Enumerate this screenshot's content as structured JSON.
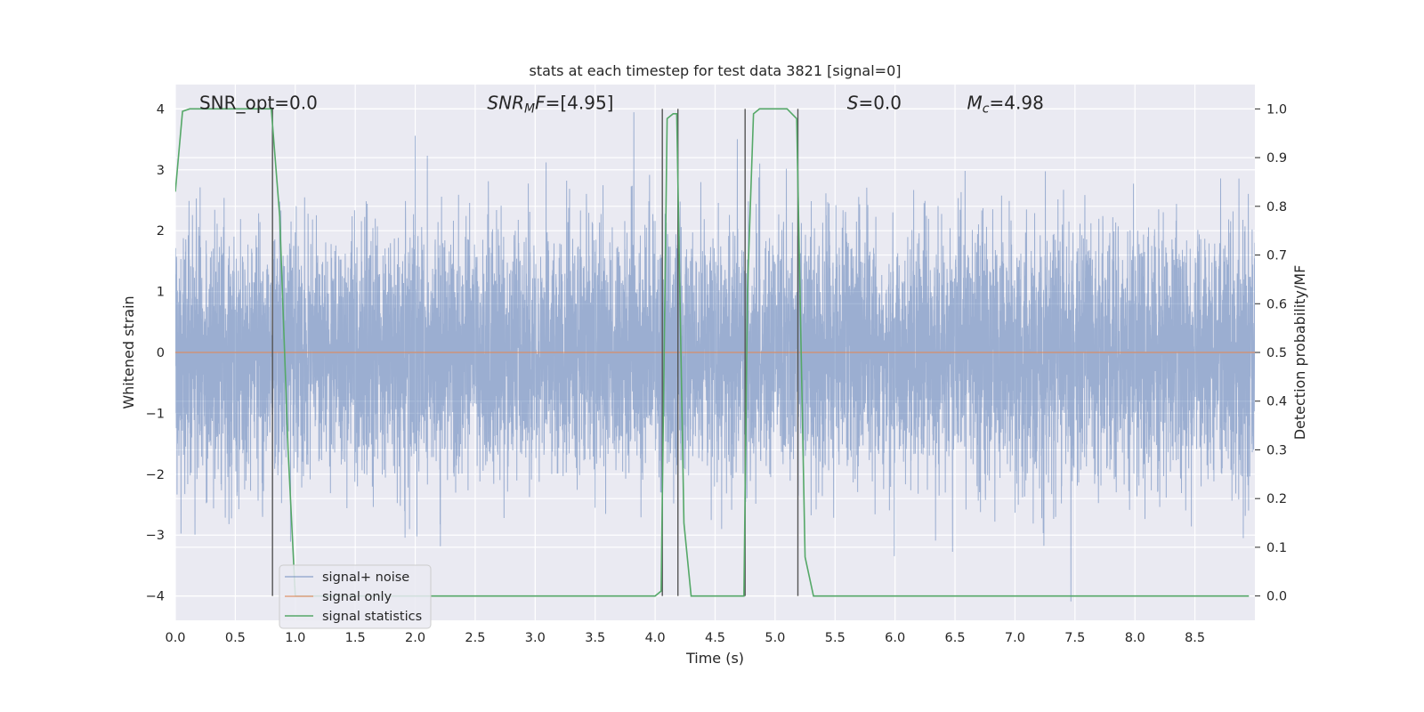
{
  "chart_data": {
    "type": "line",
    "title": "stats at each timestep for test data 3821 [signal=0]",
    "xlabel": "Time (s)",
    "ylabel": "Whitened strain",
    "y2label": "Detection probability/MF",
    "xlim": [
      0.0,
      9.0
    ],
    "ylim": [
      -4.4,
      4.4
    ],
    "y2lim": [
      -0.05,
      1.05
    ],
    "x_ticks": [
      0.0,
      0.5,
      1.0,
      1.5,
      2.0,
      2.5,
      3.0,
      3.5,
      4.0,
      4.5,
      5.0,
      5.5,
      6.0,
      6.5,
      7.0,
      7.5,
      8.0,
      8.5
    ],
    "y_ticks": [
      -4,
      -3,
      -2,
      -1,
      0,
      1,
      2,
      3,
      4
    ],
    "y2_ticks": [
      0.0,
      0.1,
      0.2,
      0.3,
      0.4,
      0.5,
      0.6,
      0.7,
      0.8,
      0.9,
      1.0
    ],
    "grid": true,
    "legend_position": "lower-left",
    "annotations": [
      {
        "text_parts": [
          {
            "t": "SNR_opt=0.0"
          }
        ],
        "x": 0.2,
        "y": 4.1
      },
      {
        "text_parts": [
          {
            "t": "SNR",
            "style": "italic"
          },
          {
            "t": "M",
            "style": "italic-sub"
          },
          {
            "t": "F",
            "style": "italic"
          },
          {
            "t": "=[4.95]"
          }
        ],
        "x": 2.6,
        "y": 4.1
      },
      {
        "text_parts": [
          {
            "t": "S",
            "style": "italic"
          },
          {
            "t": "=0.0"
          }
        ],
        "x": 5.6,
        "y": 4.1
      },
      {
        "text_parts": [
          {
            "t": "M",
            "style": "italic"
          },
          {
            "t": "c",
            "style": "italic-sub"
          },
          {
            "t": "=4.98"
          }
        ],
        "x": 6.6,
        "y": 4.1
      }
    ],
    "vertical_lines_x": [
      0.81,
      4.06,
      4.19,
      4.75,
      5.19
    ],
    "series": [
      {
        "name": "signal+ noise",
        "color": "#4c72b0",
        "axis": "left",
        "noise": {
          "seed": 3821,
          "sigma": 1.0,
          "n_points": 8192
        }
      },
      {
        "name": "signal only",
        "color": "#dd8452",
        "axis": "left",
        "constant": 0.0
      },
      {
        "name": "signal statistics",
        "color": "#55a868",
        "axis": "right",
        "x": [
          0.0,
          0.06,
          0.12,
          0.6,
          0.8,
          0.87,
          0.94,
          1.0,
          3.9,
          4.0,
          4.05,
          4.1,
          4.15,
          4.18,
          4.24,
          4.3,
          4.5,
          4.74,
          4.77,
          4.82,
          4.87,
          5.1,
          5.18,
          5.25,
          5.32,
          8.95
        ],
        "y": [
          0.83,
          0.995,
          1.0,
          1.0,
          1.0,
          0.78,
          0.3,
          0.0,
          0.0,
          0.0,
          0.01,
          0.98,
          0.99,
          0.99,
          0.15,
          0.0,
          0.0,
          0.0,
          0.63,
          0.99,
          1.0,
          1.0,
          0.98,
          0.08,
          0.0,
          0.0
        ]
      }
    ]
  }
}
